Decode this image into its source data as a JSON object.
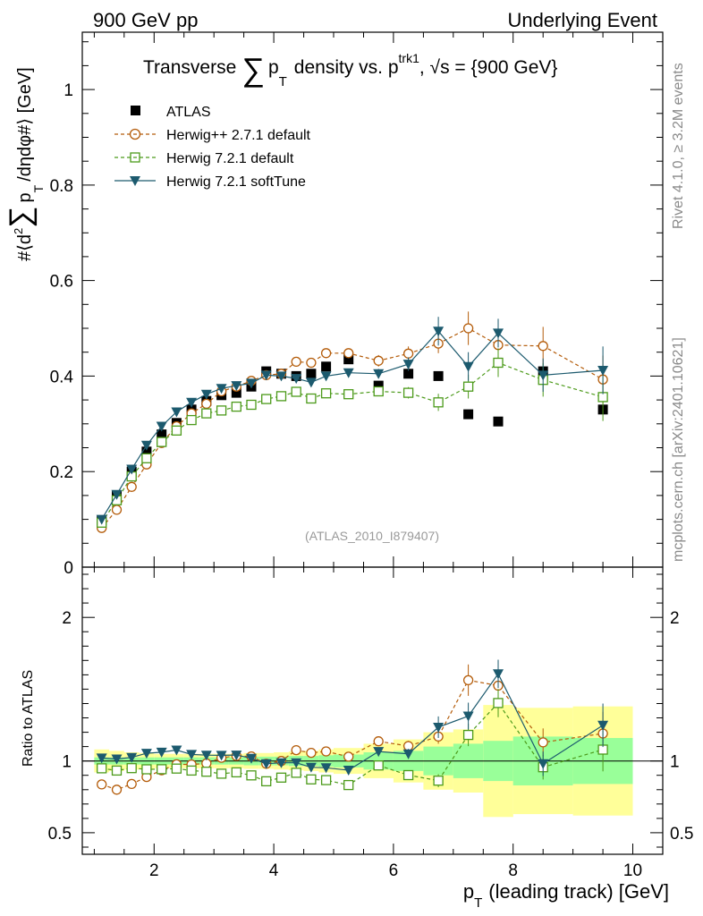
{
  "header": {
    "left": "900 GeV pp",
    "right": "Underlying Event"
  },
  "side_labels": {
    "rivet": "Rivet 4.1.0, ≥ 3.2M events",
    "mcplots": "mcplots.cern.ch [arXiv:2401.10621]"
  },
  "chart_data": {
    "type": "scatter",
    "title": {
      "part1": "Transverse",
      "sum": "∑",
      "p": "p",
      "sub_T": "T",
      "part2": "density vs. p",
      "sup": "trk1",
      "part3": ", √s = {900 GeV}"
    },
    "ylabel": {
      "part1": "#⟨d",
      "sup2": "2",
      "sum": "∑",
      "p": "p",
      "sub_T": "T",
      "part2": "/dηdφ#⟩ [GeV]"
    },
    "xlabel": {
      "p": "p",
      "sub_T": "T",
      "rest": "(leading track) [GeV]"
    },
    "ratio_ylabel": "Ratio to ATLAS",
    "watermark": "(ATLAS_2010_I879407)",
    "xlim": [
      0.8,
      10.5
    ],
    "main_ylim": [
      0,
      1.12
    ],
    "ratio_ylim": [
      0.35,
      2.35
    ],
    "main_yticks": [
      "0",
      "0.2",
      "0.4",
      "0.6",
      "0.8",
      "1"
    ],
    "main_ytick_values": [
      0,
      0.2,
      0.4,
      0.6,
      0.8,
      1.0
    ],
    "ratio_yticks": [
      "0.5",
      "1",
      "2"
    ],
    "ratio_ytick_values": [
      0.5,
      1,
      2
    ],
    "xticks": [
      "2",
      "4",
      "6",
      "8",
      "10"
    ],
    "xtick_values": [
      2,
      4,
      6,
      8,
      10
    ],
    "x": [
      1.125,
      1.375,
      1.625,
      1.875,
      2.125,
      2.375,
      2.625,
      2.875,
      3.125,
      3.375,
      3.625,
      3.875,
      4.125,
      4.375,
      4.625,
      4.875,
      5.25,
      5.75,
      6.25,
      6.75,
      7.25,
      7.75,
      8.5,
      9.5
    ],
    "xerr": [
      0.125,
      0.125,
      0.125,
      0.125,
      0.125,
      0.125,
      0.125,
      0.125,
      0.125,
      0.125,
      0.125,
      0.125,
      0.125,
      0.125,
      0.125,
      0.125,
      0.25,
      0.25,
      0.25,
      0.25,
      0.25,
      0.25,
      0.5,
      0.5
    ],
    "data_band_stat": [
      0.025,
      0.025,
      0.025,
      0.025,
      0.025,
      0.025,
      0.025,
      0.025,
      0.025,
      0.025,
      0.03,
      0.03,
      0.03,
      0.035,
      0.035,
      0.04,
      0.045,
      0.06,
      0.07,
      0.1,
      0.12,
      0.14,
      0.17,
      0.16
    ],
    "data_band_tot": [
      0.08,
      0.07,
      0.06,
      0.055,
      0.05,
      0.05,
      0.05,
      0.05,
      0.05,
      0.05,
      0.055,
      0.055,
      0.06,
      0.065,
      0.07,
      0.08,
      0.09,
      0.12,
      0.15,
      0.2,
      0.22,
      0.39,
      0.37,
      0.38
    ],
    "series": [
      {
        "name": "ATLAS",
        "color": "#000000",
        "marker": "square-filled",
        "y": [
          0.098,
          0.15,
          0.2,
          0.242,
          0.278,
          0.302,
          0.33,
          0.348,
          0.36,
          0.365,
          0.378,
          0.41,
          0.405,
          0.4,
          0.405,
          0.42,
          0.435,
          0.38,
          0.405,
          0.4,
          0.32,
          0.305,
          0.41,
          0.33
        ]
      },
      {
        "name": "Herwig++ 2.7.1 default",
        "color": "#b45c0a",
        "marker": "circle-open",
        "dash": true,
        "y": [
          0.082,
          0.12,
          0.168,
          0.215,
          0.26,
          0.295,
          0.322,
          0.342,
          0.368,
          0.378,
          0.39,
          0.402,
          0.405,
          0.43,
          0.428,
          0.448,
          0.448,
          0.432,
          0.447,
          0.468,
          0.5,
          0.465,
          0.463,
          0.393
        ],
        "yerr": [
          0.003,
          0.003,
          0.003,
          0.003,
          0.004,
          0.004,
          0.004,
          0.005,
          0.005,
          0.005,
          0.006,
          0.006,
          0.007,
          0.007,
          0.008,
          0.008,
          0.009,
          0.012,
          0.015,
          0.02,
          0.035,
          0.04,
          0.04,
          0.05
        ]
      },
      {
        "name": "Herwig 7.2.1 default",
        "color": "#4c9a1a",
        "marker": "square-open",
        "dash": true,
        "y": [
          0.093,
          0.14,
          0.19,
          0.228,
          0.262,
          0.286,
          0.308,
          0.322,
          0.328,
          0.336,
          0.34,
          0.352,
          0.358,
          0.367,
          0.353,
          0.364,
          0.362,
          0.368,
          0.365,
          0.345,
          0.378,
          0.428,
          0.392,
          0.356
        ],
        "yerr": [
          0.003,
          0.003,
          0.003,
          0.003,
          0.004,
          0.004,
          0.004,
          0.005,
          0.005,
          0.005,
          0.006,
          0.006,
          0.006,
          0.007,
          0.007,
          0.008,
          0.008,
          0.01,
          0.012,
          0.018,
          0.025,
          0.03,
          0.035,
          0.05
        ]
      },
      {
        "name": "Herwig 7.2.1 softTune",
        "color": "#1c5a6e",
        "marker": "triangle-down",
        "dash": false,
        "y": [
          0.1,
          0.152,
          0.205,
          0.255,
          0.295,
          0.325,
          0.345,
          0.362,
          0.374,
          0.38,
          0.385,
          0.402,
          0.4,
          0.395,
          0.387,
          0.4,
          0.407,
          0.405,
          0.425,
          0.494,
          0.42,
          0.49,
          0.402,
          0.412
        ],
        "yerr": [
          0.003,
          0.003,
          0.003,
          0.003,
          0.004,
          0.004,
          0.004,
          0.005,
          0.005,
          0.005,
          0.006,
          0.006,
          0.006,
          0.007,
          0.007,
          0.008,
          0.008,
          0.01,
          0.014,
          0.03,
          0.03,
          0.03,
          0.035,
          0.05
        ]
      }
    ]
  }
}
